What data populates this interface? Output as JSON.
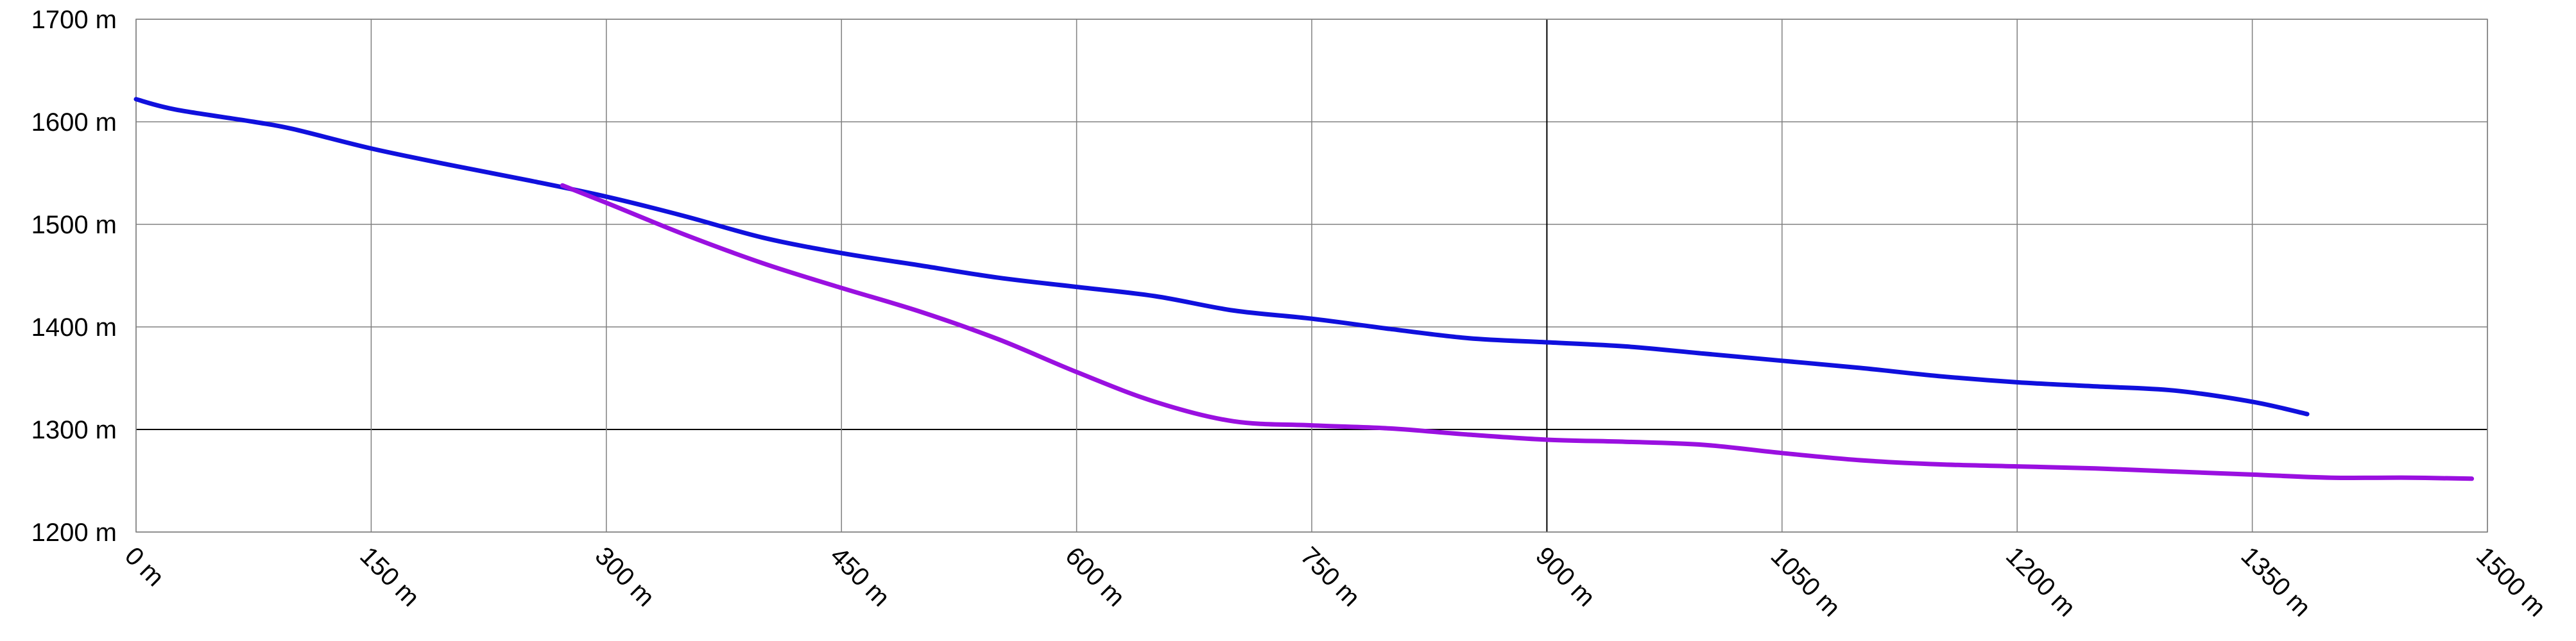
{
  "chart_data": {
    "type": "line",
    "title": "",
    "xlabel": "",
    "ylabel": "",
    "xlim": [
      0,
      1500
    ],
    "ylim": [
      1200,
      1700
    ],
    "grid": true,
    "x_ticks": [
      0,
      150,
      300,
      450,
      600,
      750,
      900,
      1050,
      1200,
      1350,
      1500
    ],
    "x_tick_labels": [
      "0 m",
      "150 m",
      "300 m",
      "450 m",
      "600 m",
      "750 m",
      "900 m",
      "1050 m",
      "1200 m",
      "1350 m",
      "1500 m"
    ],
    "y_ticks": [
      1200,
      1300,
      1400,
      1500,
      1600,
      1700
    ],
    "y_tick_labels": [
      "1200 m",
      "1300 m",
      "1400 m",
      "1500 m",
      "1600 m",
      "1700 m"
    ],
    "highlighted_gridlines": {
      "x": [
        900
      ],
      "y": [
        1300
      ]
    },
    "series": [
      {
        "color": "#1010dd",
        "x": [
          0,
          25,
          75,
          100,
          150,
          200,
          250,
          300,
          350,
          400,
          450,
          500,
          550,
          600,
          650,
          700,
          750,
          800,
          850,
          900,
          950,
          1000,
          1050,
          1100,
          1150,
          1200,
          1250,
          1300,
          1350,
          1385
        ],
        "y": [
          1622,
          1612,
          1600,
          1593,
          1574,
          1558,
          1543,
          1527,
          1508,
          1487,
          1472,
          1460,
          1448,
          1439,
          1430,
          1416,
          1408,
          1398,
          1389,
          1385,
          1381,
          1374,
          1367,
          1360,
          1352,
          1346,
          1342,
          1338,
          1327,
          1315
        ]
      },
      {
        "color": "#9a10e0",
        "x": [
          272,
          300,
          350,
          400,
          450,
          500,
          550,
          600,
          650,
          700,
          750,
          800,
          850,
          900,
          950,
          1000,
          1050,
          1100,
          1150,
          1200,
          1250,
          1300,
          1350,
          1400,
          1450,
          1490
        ],
        "y": [
          1538,
          1521,
          1490,
          1462,
          1438,
          1415,
          1388,
          1356,
          1327,
          1308,
          1304,
          1301,
          1295,
          1290,
          1288,
          1285,
          1277,
          1270,
          1266,
          1264,
          1262,
          1259,
          1256,
          1253,
          1253,
          1252
        ]
      }
    ]
  }
}
